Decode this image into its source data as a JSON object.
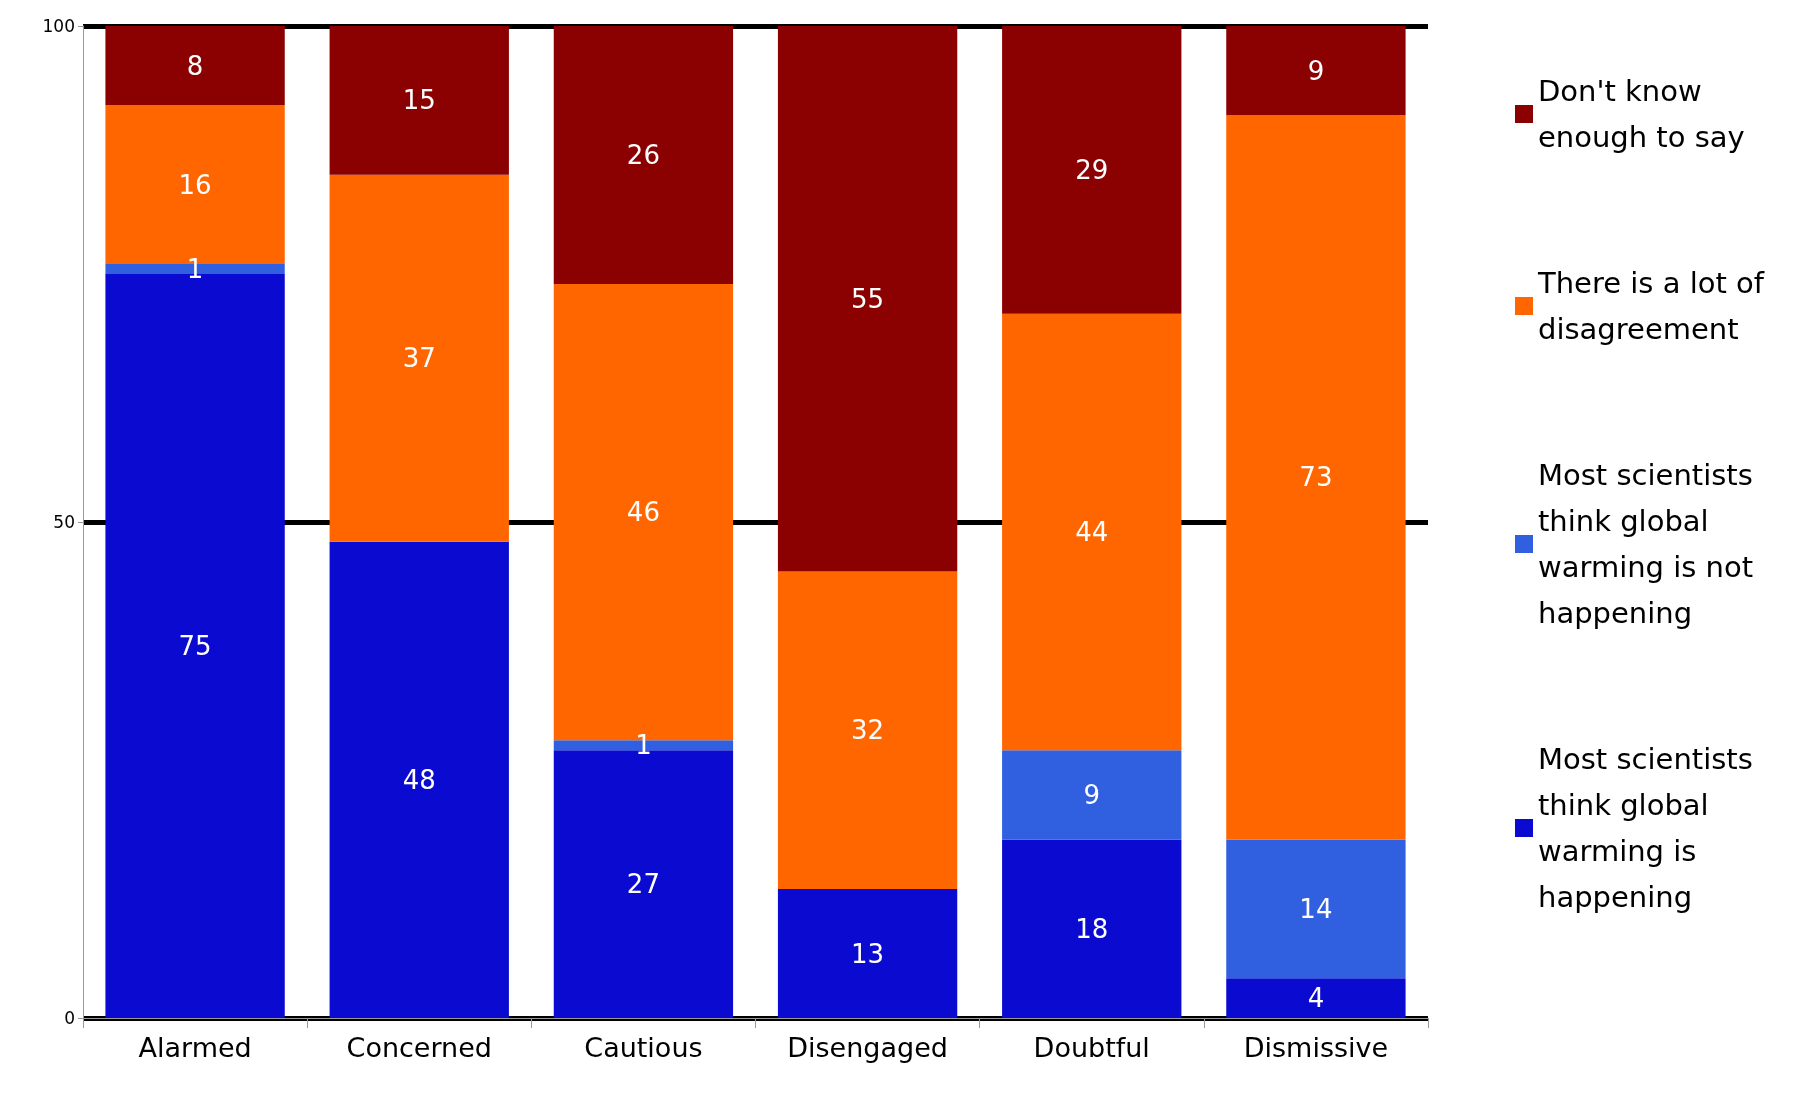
{
  "chart_data": {
    "type": "bar",
    "stacked": true,
    "categories": [
      "Alarmed",
      "Concerned",
      "Cautious",
      "Disengaged",
      "Doubtful",
      "Dismissive"
    ],
    "series": [
      {
        "name": "Most scientists think global warming is happening",
        "color": "#0a0ad0",
        "values": [
          75,
          48,
          27,
          13,
          18,
          4
        ]
      },
      {
        "name": "Most scientists think global warming is not happening",
        "color": "#3060e0",
        "values": [
          1,
          null,
          1,
          null,
          9,
          14
        ]
      },
      {
        "name": "There is a lot of disagreement",
        "color": "#ff6600",
        "values": [
          16,
          37,
          46,
          32,
          44,
          73
        ]
      },
      {
        "name": "Don't know enough to say",
        "color": "#8b0000",
        "values": [
          8,
          15,
          26,
          55,
          29,
          9
        ]
      }
    ],
    "ylim": [
      0,
      100
    ],
    "yticks": [
      0,
      50,
      100
    ],
    "grid": "y",
    "legend": "right",
    "data_labels": true
  }
}
